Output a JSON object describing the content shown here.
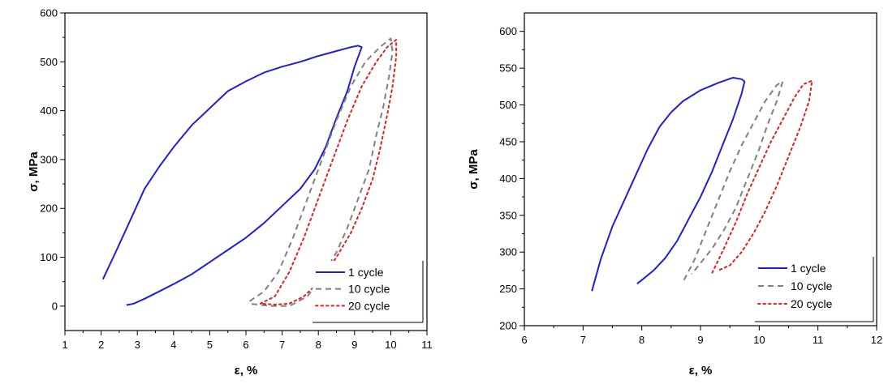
{
  "chart_data": [
    {
      "type": "line",
      "xlabel": "ε, %",
      "ylabel": "σ, MPa",
      "xlim": [
        1,
        11
      ],
      "ylim": [
        -50,
        600
      ],
      "xticks": [
        1,
        2,
        3,
        4,
        5,
        6,
        7,
        8,
        9,
        10,
        11
      ],
      "yticks": [
        0,
        100,
        200,
        300,
        400,
        500,
        600
      ],
      "legend_position": "bottom-right",
      "series": [
        {
          "name": "1 cycle",
          "color": "#1f1fd6",
          "style": "solid",
          "points": [
            [
              2.05,
              55
            ],
            [
              2.4,
              110
            ],
            [
              2.8,
              175
            ],
            [
              3.2,
              240
            ],
            [
              3.6,
              285
            ],
            [
              4.0,
              325
            ],
            [
              4.5,
              370
            ],
            [
              5.0,
              405
            ],
            [
              5.5,
              440
            ],
            [
              6.0,
              460
            ],
            [
              6.5,
              478
            ],
            [
              7.0,
              490
            ],
            [
              7.5,
              500
            ],
            [
              8.0,
              512
            ],
            [
              8.5,
              522
            ],
            [
              8.9,
              530
            ],
            [
              9.1,
              533
            ],
            [
              9.2,
              530
            ],
            [
              9.0,
              490
            ],
            [
              8.8,
              440
            ],
            [
              8.5,
              385
            ],
            [
              8.2,
              325
            ],
            [
              7.9,
              280
            ],
            [
              7.5,
              240
            ],
            [
              7.0,
              205
            ],
            [
              6.5,
              170
            ],
            [
              6.0,
              140
            ],
            [
              5.5,
              115
            ],
            [
              5.0,
              90
            ],
            [
              4.5,
              65
            ],
            [
              4.0,
              45
            ],
            [
              3.6,
              30
            ],
            [
              3.2,
              15
            ],
            [
              2.9,
              5
            ],
            [
              2.7,
              2
            ]
          ]
        },
        {
          "name": "10 cycle",
          "color": "#808080",
          "style": "dashed",
          "points": [
            [
              6.1,
              10
            ],
            [
              6.5,
              30
            ],
            [
              6.9,
              70
            ],
            [
              7.3,
              140
            ],
            [
              7.7,
              220
            ],
            [
              8.1,
              300
            ],
            [
              8.5,
              380
            ],
            [
              8.9,
              450
            ],
            [
              9.3,
              500
            ],
            [
              9.7,
              530
            ],
            [
              10.0,
              548
            ],
            [
              10.05,
              520
            ],
            [
              9.95,
              470
            ],
            [
              9.8,
              410
            ],
            [
              9.6,
              350
            ],
            [
              9.4,
              280
            ],
            [
              9.1,
              220
            ],
            [
              8.8,
              160
            ],
            [
              8.5,
              110
            ],
            [
              8.1,
              60
            ],
            [
              7.7,
              20
            ],
            [
              7.2,
              0
            ],
            [
              6.7,
              0
            ],
            [
              6.1,
              5
            ]
          ]
        },
        {
          "name": "20 cycle",
          "color": "#e02020",
          "style": "dotted",
          "points": [
            [
              6.4,
              5
            ],
            [
              6.8,
              20
            ],
            [
              7.2,
              70
            ],
            [
              7.6,
              140
            ],
            [
              8.0,
              220
            ],
            [
              8.4,
              300
            ],
            [
              8.8,
              380
            ],
            [
              9.2,
              450
            ],
            [
              9.6,
              500
            ],
            [
              9.9,
              530
            ],
            [
              10.15,
              545
            ],
            [
              10.15,
              510
            ],
            [
              10.05,
              450
            ],
            [
              9.9,
              390
            ],
            [
              9.7,
              320
            ],
            [
              9.5,
              260
            ],
            [
              9.2,
              200
            ],
            [
              8.9,
              150
            ],
            [
              8.5,
              100
            ],
            [
              8.1,
              55
            ],
            [
              7.6,
              20
            ],
            [
              7.2,
              5
            ],
            [
              6.8,
              3
            ],
            [
              6.4,
              5
            ]
          ]
        }
      ]
    },
    {
      "type": "line",
      "xlabel": "ε, %",
      "ylabel": "σ, MPa",
      "xlim": [
        6,
        12
      ],
      "ylim": [
        200,
        625
      ],
      "xticks": [
        6,
        7,
        8,
        9,
        10,
        11,
        12
      ],
      "yticks": [
        200,
        250,
        300,
        350,
        400,
        450,
        500,
        550,
        600
      ],
      "legend_position": "bottom-right",
      "series": [
        {
          "name": "1 cycle",
          "color": "#1f1fd6",
          "style": "solid",
          "points": [
            [
              7.15,
              247
            ],
            [
              7.3,
              290
            ],
            [
              7.5,
              335
            ],
            [
              7.7,
              370
            ],
            [
              7.9,
              405
            ],
            [
              8.1,
              440
            ],
            [
              8.3,
              470
            ],
            [
              8.5,
              490
            ],
            [
              8.7,
              505
            ],
            [
              9.0,
              520
            ],
            [
              9.3,
              530
            ],
            [
              9.55,
              537
            ],
            [
              9.7,
              535
            ],
            [
              9.75,
              532
            ],
            [
              9.7,
              515
            ],
            [
              9.55,
              480
            ],
            [
              9.4,
              450
            ],
            [
              9.2,
              410
            ],
            [
              9.0,
              375
            ],
            [
              8.8,
              345
            ],
            [
              8.6,
              315
            ],
            [
              8.4,
              292
            ],
            [
              8.2,
              275
            ],
            [
              8.0,
              262
            ],
            [
              7.92,
              257
            ]
          ]
        },
        {
          "name": "10 cycle",
          "color": "#808080",
          "style": "dashed",
          "points": [
            [
              8.72,
              262
            ],
            [
              8.9,
              290
            ],
            [
              9.1,
              330
            ],
            [
              9.3,
              370
            ],
            [
              9.5,
              410
            ],
            [
              9.7,
              445
            ],
            [
              9.9,
              475
            ],
            [
              10.1,
              505
            ],
            [
              10.3,
              527
            ],
            [
              10.4,
              532
            ],
            [
              10.3,
              505
            ],
            [
              10.15,
              475
            ],
            [
              10.0,
              440
            ],
            [
              9.8,
              400
            ],
            [
              9.6,
              360
            ],
            [
              9.4,
              330
            ],
            [
              9.2,
              305
            ],
            [
              9.0,
              285
            ],
            [
              8.85,
              270
            ]
          ]
        },
        {
          "name": "20 cycle",
          "color": "#e02020",
          "style": "dotted",
          "points": [
            [
              9.2,
              272
            ],
            [
              9.4,
              305
            ],
            [
              9.6,
              340
            ],
            [
              9.8,
              380
            ],
            [
              10.0,
              415
            ],
            [
              10.2,
              450
            ],
            [
              10.4,
              480
            ],
            [
              10.6,
              510
            ],
            [
              10.75,
              528
            ],
            [
              10.9,
              533
            ],
            [
              10.85,
              505
            ],
            [
              10.7,
              470
            ],
            [
              10.5,
              430
            ],
            [
              10.3,
              390
            ],
            [
              10.1,
              355
            ],
            [
              9.9,
              325
            ],
            [
              9.7,
              300
            ],
            [
              9.5,
              282
            ],
            [
              9.3,
              275
            ]
          ]
        }
      ]
    }
  ]
}
